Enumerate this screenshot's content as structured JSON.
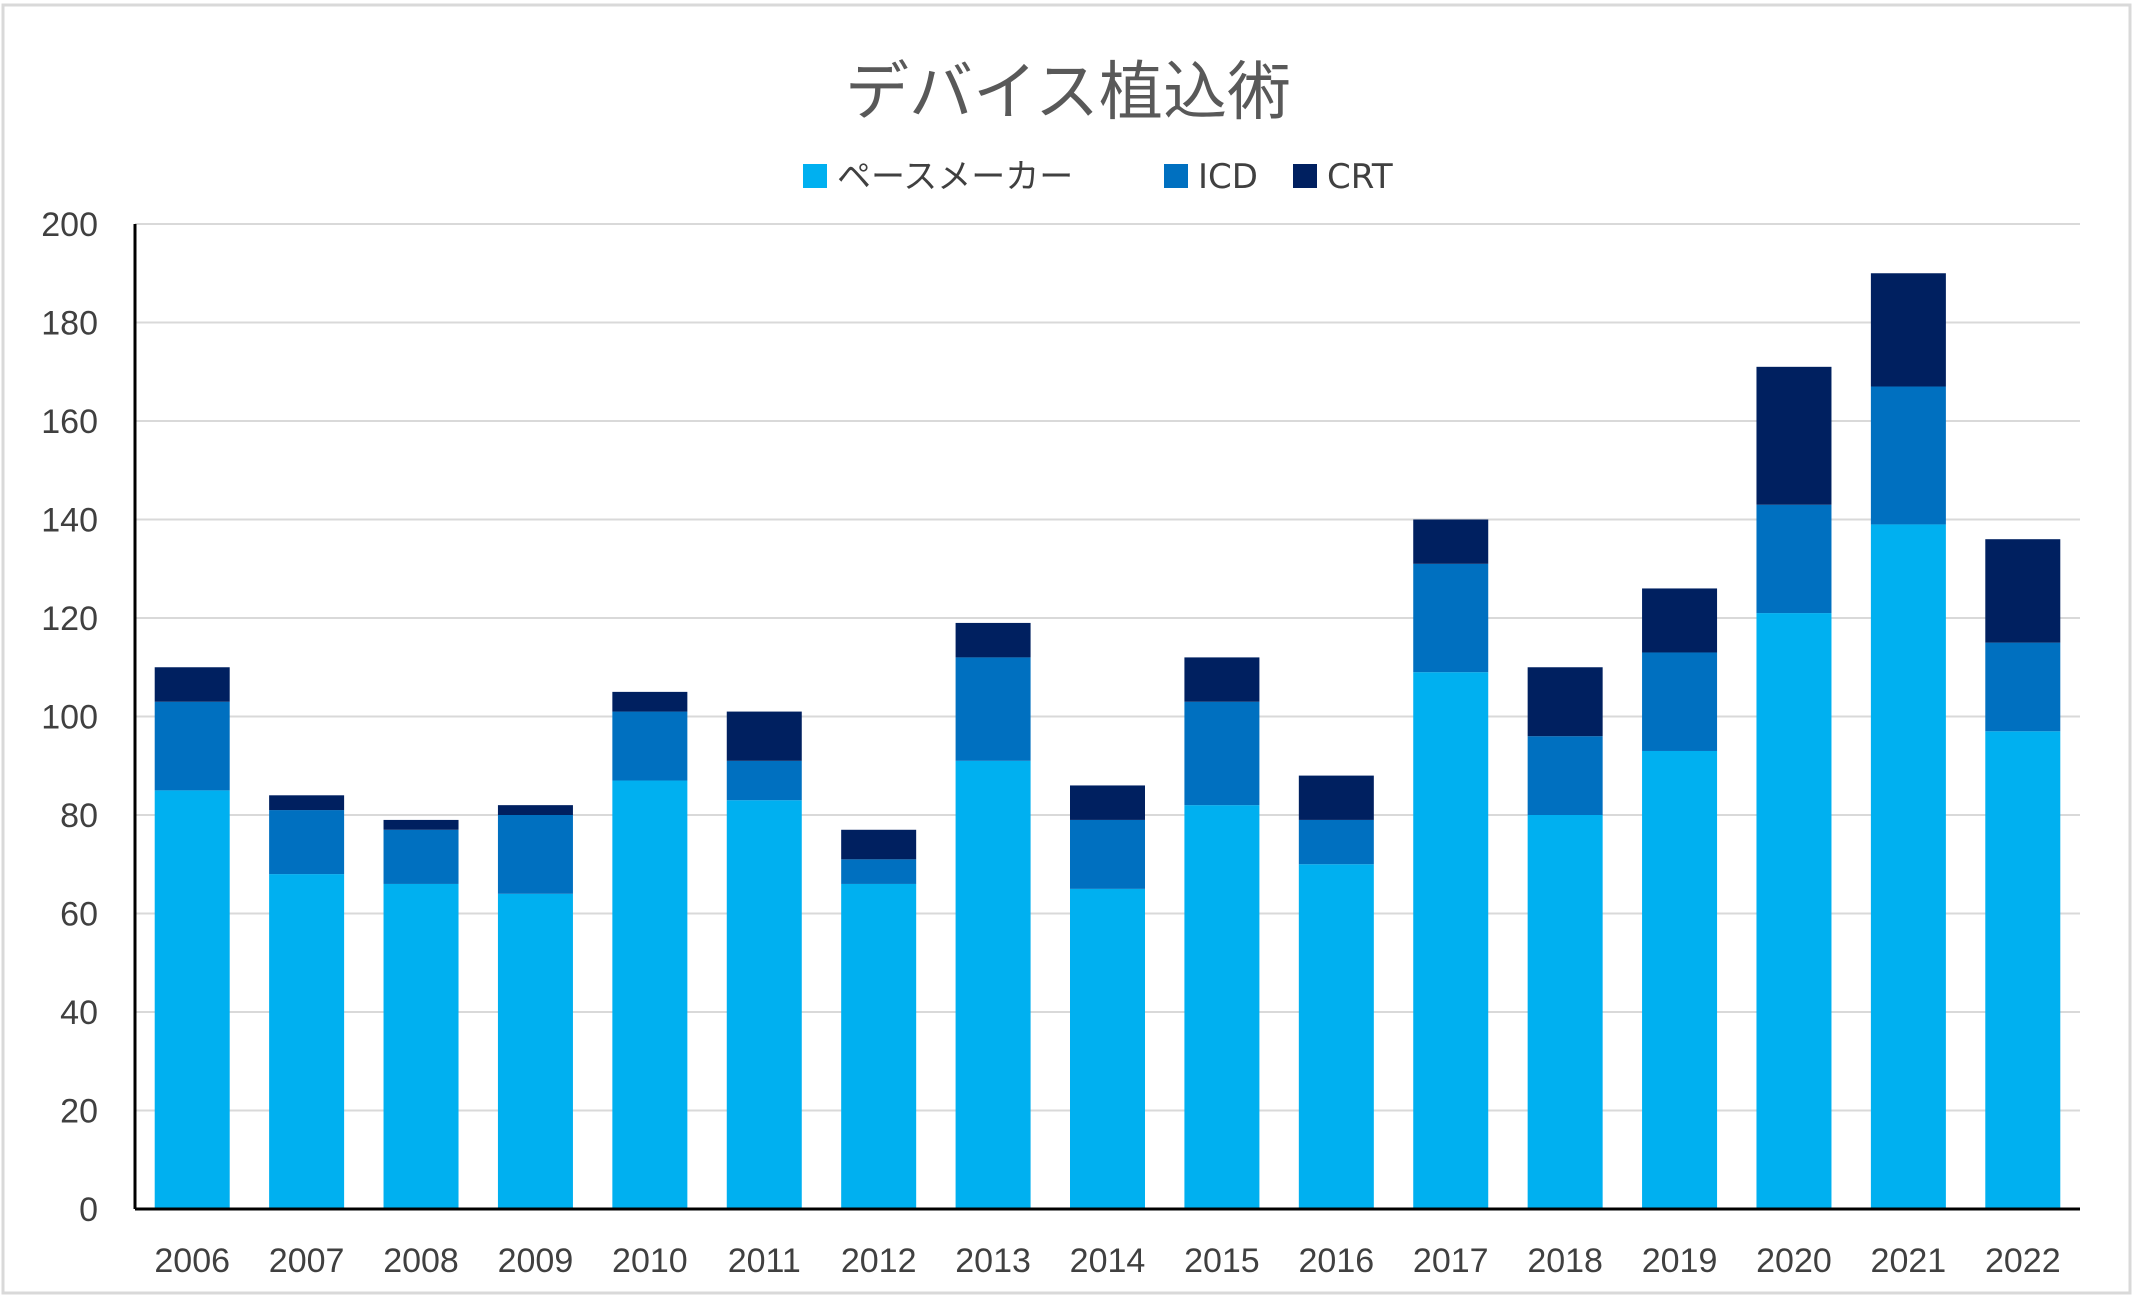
{
  "chart_data": {
    "type": "bar",
    "stacked": true,
    "title": "デバイス植込術",
    "xlabel": "",
    "ylabel": "",
    "categories": [
      "2006",
      "2007",
      "2008",
      "2009",
      "2010",
      "2011",
      "2012",
      "2013",
      "2014",
      "2015",
      "2016",
      "2017",
      "2018",
      "2019",
      "2020",
      "2021",
      "2022"
    ],
    "series": [
      {
        "name": "ペースメーカー",
        "color": "#00B0F0",
        "values": [
          85,
          68,
          66,
          64,
          87,
          83,
          66,
          91,
          65,
          82,
          70,
          109,
          80,
          93,
          121,
          139,
          97
        ]
      },
      {
        "name": "ICD",
        "color": "#0070C0",
        "values": [
          18,
          13,
          11,
          16,
          14,
          8,
          5,
          21,
          14,
          21,
          9,
          22,
          16,
          20,
          22,
          28,
          18
        ]
      },
      {
        "name": "CRT",
        "color": "#002060",
        "values": [
          7,
          3,
          2,
          2,
          4,
          10,
          6,
          7,
          7,
          9,
          9,
          9,
          14,
          13,
          28,
          23,
          21
        ]
      }
    ],
    "ylim": [
      0,
      200
    ],
    "yticks": [
      0,
      20,
      40,
      60,
      80,
      100,
      120,
      140,
      160,
      180,
      200
    ],
    "grid": true,
    "legend_position": "top"
  }
}
